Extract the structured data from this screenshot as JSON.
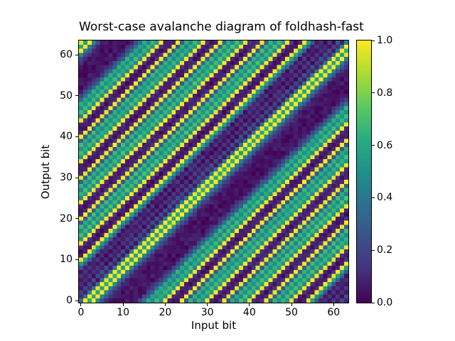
{
  "figure": {
    "background": "#ffffff"
  },
  "chart_data": {
    "type": "heatmap",
    "title": "Worst-case avalanche diagram of foldhash-fast",
    "xlabel": "Input bit",
    "ylabel": "Output bit",
    "grid_size": 64,
    "x_range": [
      0,
      63
    ],
    "y_range": [
      0,
      63
    ],
    "x_ticks": [
      0,
      10,
      20,
      30,
      40,
      50,
      60
    ],
    "y_ticks": [
      0,
      10,
      20,
      30,
      40,
      50,
      60
    ],
    "grid": false,
    "legend": "colorbar-right",
    "colorbar": {
      "range": [
        0.0,
        1.0
      ],
      "colormap": "viridis",
      "ticks": [
        {
          "label": "0.0",
          "value": 0.0
        },
        {
          "label": "0.2",
          "value": 0.2
        },
        {
          "label": "0.4",
          "value": 0.4
        },
        {
          "label": "0.6",
          "value": 0.6
        },
        {
          "label": "0.8",
          "value": 0.8
        },
        {
          "label": "1.0",
          "value": 1.0
        }
      ]
    },
    "colormap_stops": [
      {
        "pos": 0.0,
        "rgb": [
          68,
          1,
          84
        ]
      },
      {
        "pos": 0.125,
        "rgb": [
          70,
          50,
          127
        ]
      },
      {
        "pos": 0.25,
        "rgb": [
          59,
          82,
          139
        ]
      },
      {
        "pos": 0.375,
        "rgb": [
          44,
          113,
          142
        ]
      },
      {
        "pos": 0.5,
        "rgb": [
          33,
          145,
          140
        ]
      },
      {
        "pos": 0.625,
        "rgb": [
          39,
          173,
          129
        ]
      },
      {
        "pos": 0.75,
        "rgb": [
          94,
          201,
          98
        ]
      },
      {
        "pos": 0.875,
        "rgb": [
          170,
          220,
          50
        ]
      },
      {
        "pos": 1.0,
        "rgb": [
          253,
          231,
          37
        ]
      }
    ],
    "value_model": {
      "pattern": "circulant-diagonal",
      "formula": "value(input_bit i, output_bit j) = diagonal_profile[(j - i) mod 64] + noise; diagonal stripes of flip probability run parallel to the main diagonal and wrap around, producing dashed yellow (p~1.0) lines, green checkerboard fields (p~0.5-0.68) and wide dark bands (p~0.0-0.1)",
      "diagonal_profile": [
        0.4,
        0.08,
        0.22,
        0.05,
        0.14,
        0.04,
        0.12,
        0.06,
        0.3,
        0.55,
        1.0,
        0.1,
        0.04,
        0.12,
        1.0,
        0.5,
        0.68,
        0.48,
        0.66,
        0.3,
        1.0,
        0.12,
        0.05,
        0.1,
        1.0,
        0.52,
        0.68,
        0.48,
        0.65,
        0.3,
        1.0,
        0.1,
        0.05,
        0.12,
        1.0,
        0.52,
        0.66,
        0.48,
        0.65,
        0.28,
        1.0,
        0.1,
        0.05,
        0.11,
        1.0,
        0.5,
        0.66,
        0.48,
        0.62,
        0.35,
        0.2,
        0.08,
        0.04,
        0.06,
        0.03,
        0.05,
        0.04,
        0.06,
        0.1,
        0.25,
        0.45,
        1.0,
        0.6,
        1.0
      ],
      "noise_amplitude": 0.04
    }
  }
}
